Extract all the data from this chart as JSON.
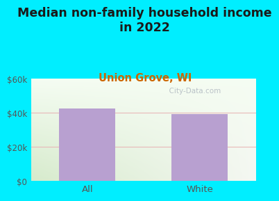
{
  "title": "Median non-family household income\nin 2022",
  "subtitle": "Union Grove, WI",
  "categories": [
    "All",
    "White"
  ],
  "values": [
    42500,
    39500
  ],
  "bar_color": "#b8a0d0",
  "title_fontsize": 12.5,
  "subtitle_fontsize": 10.5,
  "subtitle_color": "#cc6600",
  "tick_label_color": "#555555",
  "ylim": [
    0,
    60000
  ],
  "yticks": [
    0,
    20000,
    40000,
    60000
  ],
  "ytick_labels": [
    "$0",
    "$20k",
    "$40k",
    "$60k"
  ],
  "background_outer": "#00eeff",
  "bg_top_right": "#f5f5f0",
  "bg_top_left": "#e8f5e8",
  "bg_bottom_left": "#c8ecd0",
  "bg_bottom_right": "#e0eee0",
  "watermark": "  City-Data.com",
  "grid_color": "#e8b8b8",
  "bar_width": 0.5
}
